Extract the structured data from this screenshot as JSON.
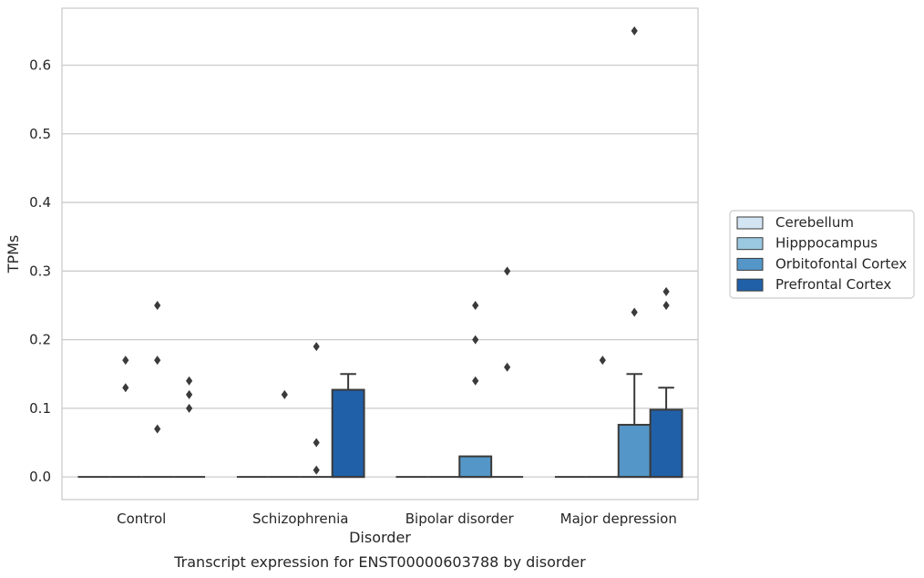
{
  "chart_data": {
    "type": "box",
    "title": "Transcript expression for ENST00000603788 by disorder",
    "xlabel": "Disorder",
    "ylabel": "TPMs",
    "ylim": [
      -0.033,
      0.683
    ],
    "yticks": [
      0.0,
      0.1,
      0.2,
      0.3,
      0.4,
      0.5,
      0.6
    ],
    "ytick_labels": [
      "0.0",
      "0.1",
      "0.2",
      "0.3",
      "0.4",
      "0.5",
      "0.6"
    ],
    "grid": "horizontal",
    "legend_position": "right",
    "categories": [
      "Control",
      "Schizophrenia",
      "Bipolar disorder",
      "Major depression"
    ],
    "series": [
      {
        "name": "Cerebellum",
        "color": "#d3e4f3",
        "boxes": [
          {
            "q1": 0,
            "median": 0,
            "q3": 0,
            "whisker_high": 0,
            "outliers": []
          },
          {
            "q1": 0,
            "median": 0,
            "q3": 0,
            "whisker_high": 0,
            "outliers": []
          },
          {
            "q1": 0,
            "median": 0,
            "q3": 0,
            "whisker_high": 0,
            "outliers": []
          },
          {
            "q1": 0,
            "median": 0,
            "q3": 0,
            "whisker_high": 0,
            "outliers": []
          }
        ]
      },
      {
        "name": "Hipppocampus",
        "color": "#9ac8e0",
        "boxes": [
          {
            "q1": 0,
            "median": 0,
            "q3": 0,
            "whisker_high": 0,
            "outliers": [
              0.13,
              0.17
            ]
          },
          {
            "q1": 0,
            "median": 0,
            "q3": 0,
            "whisker_high": 0,
            "outliers": [
              0.12
            ]
          },
          {
            "q1": 0,
            "median": 0,
            "q3": 0,
            "whisker_high": 0,
            "outliers": []
          },
          {
            "q1": 0,
            "median": 0,
            "q3": 0,
            "whisker_high": 0,
            "outliers": [
              0.17
            ]
          }
        ]
      },
      {
        "name": "Orbitofontal Cortex",
        "color": "#5496c8",
        "boxes": [
          {
            "q1": 0,
            "median": 0,
            "q3": 0,
            "whisker_high": 0,
            "outliers": [
              0.07,
              0.17,
              0.25
            ]
          },
          {
            "q1": 0,
            "median": 0,
            "q3": 0,
            "whisker_high": 0,
            "outliers": [
              0.01,
              0.05,
              0.19
            ]
          },
          {
            "q1": 0,
            "median": 0,
            "q3": 0.03,
            "whisker_high": 0.03,
            "outliers": [
              0.14,
              0.2,
              0.25
            ]
          },
          {
            "q1": 0,
            "median": 0,
            "q3": 0.076,
            "whisker_high": 0.15,
            "outliers": [
              0.24,
              0.65
            ]
          }
        ]
      },
      {
        "name": "Prefrontal Cortex",
        "color": "#2060a8",
        "boxes": [
          {
            "q1": 0,
            "median": 0,
            "q3": 0,
            "whisker_high": 0,
            "outliers": [
              0.1,
              0.12,
              0.14
            ]
          },
          {
            "q1": 0,
            "median": 0,
            "q3": 0.127,
            "whisker_high": 0.15,
            "outliers": []
          },
          {
            "q1": 0,
            "median": 0,
            "q3": 0,
            "whisker_high": 0,
            "outliers": [
              0.16,
              0.3
            ]
          },
          {
            "q1": 0,
            "median": 0,
            "q3": 0.098,
            "whisker_high": 0.13,
            "outliers": [
              0.25,
              0.27
            ]
          }
        ]
      }
    ]
  }
}
